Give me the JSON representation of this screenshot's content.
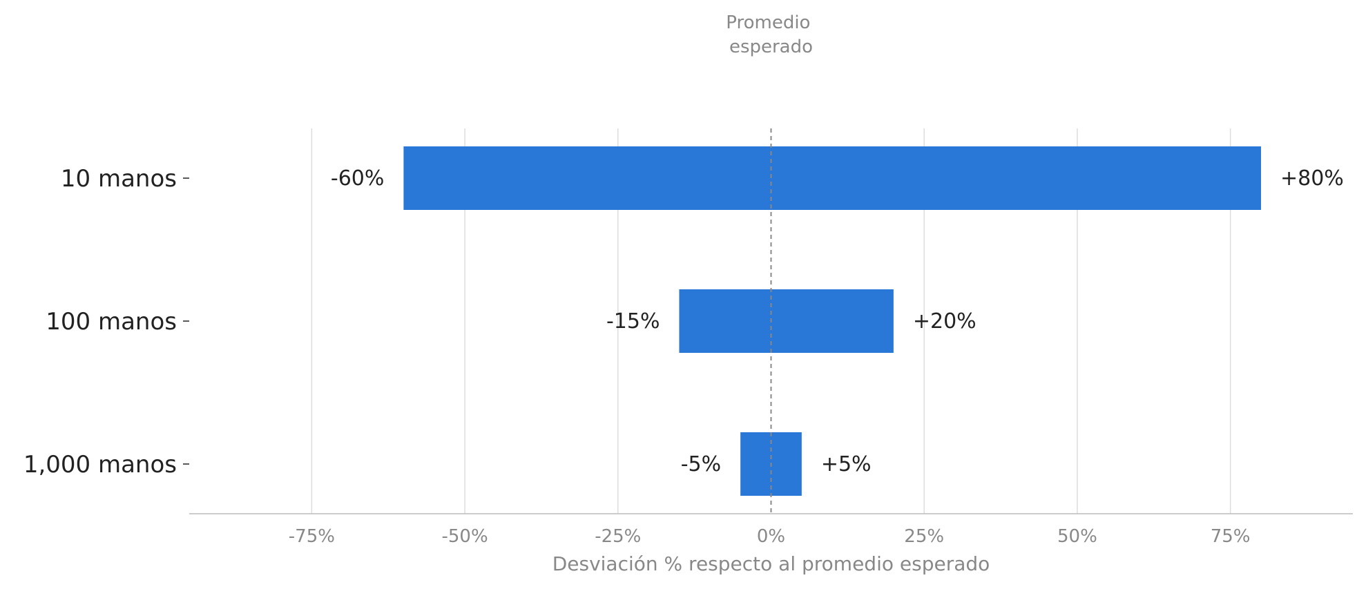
{
  "chart_data": {
    "type": "bar",
    "orientation": "horizontal",
    "categories": [
      "10 manos",
      "100 manos",
      "1,000 manos"
    ],
    "series": [
      {
        "low": [
          -60,
          -15,
          -5
        ],
        "high": [
          80,
          20,
          5
        ],
        "low_labels": [
          "-60%",
          "-15%",
          "-5%"
        ],
        "high_labels": [
          "+80%",
          "+20%",
          "+5%"
        ]
      }
    ],
    "xlabel": "Desviación % respecto al promedio esperado",
    "xlim": [
      -95,
      95
    ],
    "xticks": [
      -75,
      -50,
      -25,
      0,
      25,
      50,
      75
    ],
    "xtick_labels": [
      "-75%",
      "-50%",
      "-25%",
      "0%",
      "25%",
      "50%",
      "75%"
    ],
    "reference_line": {
      "x": 0,
      "label_lines": [
        "Promedio",
        "esperado"
      ]
    },
    "grid": true,
    "colors": {
      "bar": "#2977d6",
      "grid": "#dddddd",
      "axis": "#bbbbbb",
      "reference": "#888888"
    }
  }
}
